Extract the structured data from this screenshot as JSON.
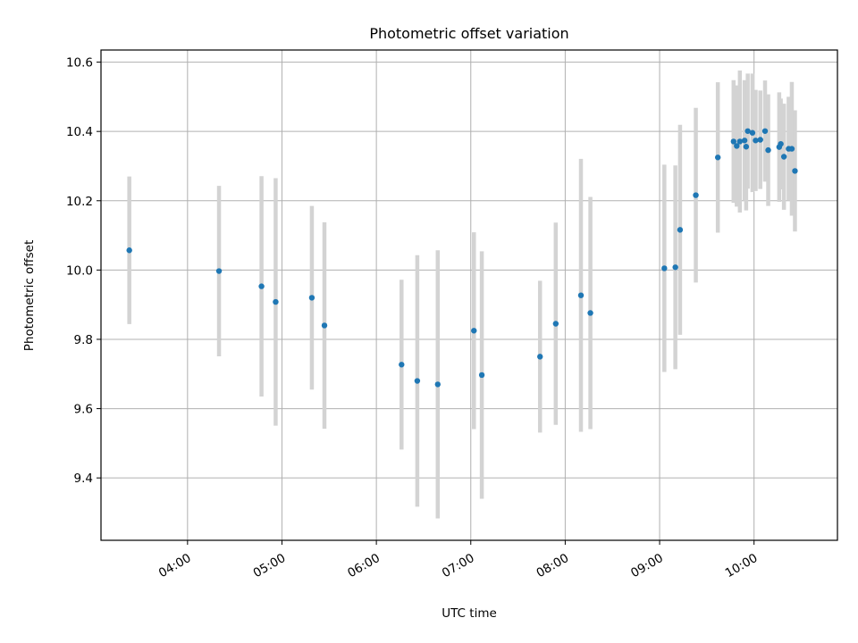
{
  "chart_data": {
    "type": "scatter",
    "title": "Photometric offset variation",
    "xlabel": "UTC time",
    "ylabel": "Photometric offset",
    "x_format": "HH:MM",
    "xlim": [
      "03:05",
      "10:53"
    ],
    "ylim": [
      9.22,
      10.635
    ],
    "x_ticks": [
      "04:00",
      "05:00",
      "06:00",
      "07:00",
      "08:00",
      "09:00",
      "10:00"
    ],
    "y_ticks": [
      "9.4",
      "9.6",
      "9.8",
      "10.0",
      "10.2",
      "10.4",
      "10.6"
    ],
    "grid": true,
    "legend": "none",
    "colors": {
      "marker": "#1f77b4",
      "errorbar": "#d3d3d3",
      "grid": "#b0b0b0"
    },
    "points": [
      {
        "time": "03:23",
        "y": 10.057,
        "err": 0.213
      },
      {
        "time": "04:20",
        "y": 9.997,
        "err": 0.246
      },
      {
        "time": "04:47",
        "y": 9.953,
        "err": 0.318
      },
      {
        "time": "04:56",
        "y": 9.908,
        "err": 0.357
      },
      {
        "time": "05:19",
        "y": 9.92,
        "err": 0.265
      },
      {
        "time": "05:27",
        "y": 9.84,
        "err": 0.298
      },
      {
        "time": "06:16",
        "y": 9.727,
        "err": 0.245
      },
      {
        "time": "06:26",
        "y": 9.68,
        "err": 0.363
      },
      {
        "time": "06:39",
        "y": 9.67,
        "err": 0.387
      },
      {
        "time": "07:02",
        "y": 9.825,
        "err": 0.284
      },
      {
        "time": "07:07",
        "y": 9.697,
        "err": 0.357
      },
      {
        "time": "07:44",
        "y": 9.75,
        "err": 0.219
      },
      {
        "time": "07:54",
        "y": 9.845,
        "err": 0.292
      },
      {
        "time": "08:10",
        "y": 9.927,
        "err": 0.394
      },
      {
        "time": "08:16",
        "y": 9.876,
        "err": 0.335
      },
      {
        "time": "09:03",
        "y": 10.005,
        "err": 0.299
      },
      {
        "time": "09:10",
        "y": 10.008,
        "err": 0.294
      },
      {
        "time": "09:13",
        "y": 10.116,
        "err": 0.303
      },
      {
        "time": "09:23",
        "y": 10.216,
        "err": 0.252
      },
      {
        "time": "09:37",
        "y": 10.325,
        "err": 0.217
      },
      {
        "time": "09:47",
        "y": 10.371,
        "err": 0.177
      },
      {
        "time": "09:49",
        "y": 10.358,
        "err": 0.175
      },
      {
        "time": "09:51",
        "y": 10.371,
        "err": 0.205
      },
      {
        "time": "09:54",
        "y": 10.374,
        "err": 0.174
      },
      {
        "time": "09:55",
        "y": 10.356,
        "err": 0.184
      },
      {
        "time": "09:56",
        "y": 10.401,
        "err": 0.166
      },
      {
        "time": "09:59",
        "y": 10.396,
        "err": 0.171
      },
      {
        "time": "10:01",
        "y": 10.374,
        "err": 0.146
      },
      {
        "time": "10:04",
        "y": 10.376,
        "err": 0.142
      },
      {
        "time": "10:07",
        "y": 10.401,
        "err": 0.146
      },
      {
        "time": "10:09",
        "y": 10.346,
        "err": 0.161
      },
      {
        "time": "10:16",
        "y": 10.355,
        "err": 0.158
      },
      {
        "time": "10:17",
        "y": 10.364,
        "err": 0.131
      },
      {
        "time": "10:19",
        "y": 10.327,
        "err": 0.153
      },
      {
        "time": "10:22",
        "y": 10.35,
        "err": 0.15
      },
      {
        "time": "10:24",
        "y": 10.35,
        "err": 0.193
      },
      {
        "time": "10:26",
        "y": 10.286,
        "err": 0.175
      }
    ]
  }
}
